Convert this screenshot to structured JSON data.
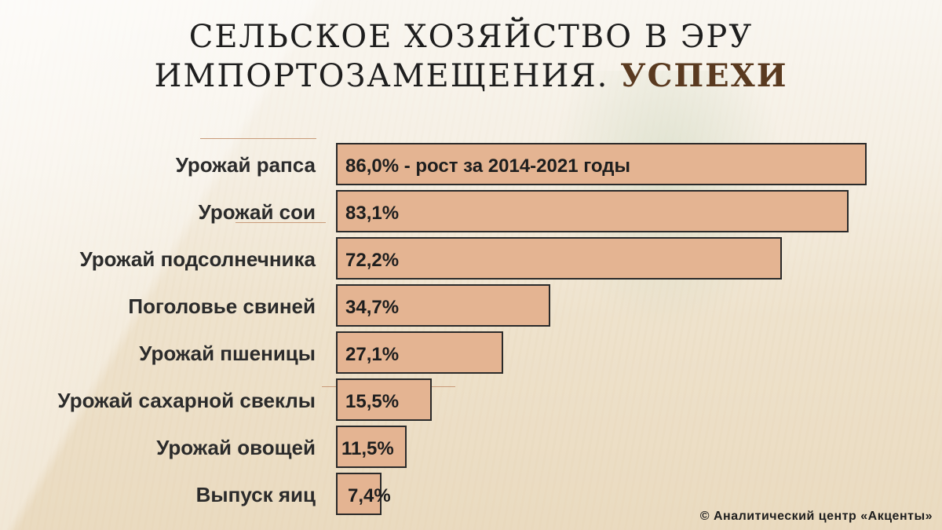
{
  "title": {
    "line1": "СЕЛЬСКОЕ  ХОЗЯЙСТВО  В  ЭРУ",
    "line2_main": "ИМПОРТОЗАМЕЩЕНИЯ. ",
    "line2_accent": "УСПЕХИ"
  },
  "copyright": "© Аналитический центр «Акценты»",
  "colors": {
    "bar_fill": "#e4b492",
    "bar_border": "#2a2a2a",
    "accent": "#5a3a20"
  },
  "chart_data": {
    "type": "bar",
    "orientation": "horizontal",
    "categories": [
      "Урожай рапса",
      "Урожай сои",
      "Урожай подсолнечника",
      "Поголовье свиней",
      "Урожай пшеницы",
      "Урожай сахарной свеклы",
      "Урожай овощей",
      "Выпуск яиц"
    ],
    "values": [
      86.0,
      83.1,
      72.2,
      34.7,
      27.1,
      15.5,
      11.5,
      7.4
    ],
    "data_labels": [
      "86,0% - рост за 2014-2021 годы",
      "83,1%",
      "72,2%",
      "34,7%",
      "27,1%",
      "15,5%",
      "11,5%",
      "7,4%"
    ],
    "unit": "%",
    "xlim": [
      0,
      86.0
    ],
    "grid": false,
    "legend": false
  }
}
